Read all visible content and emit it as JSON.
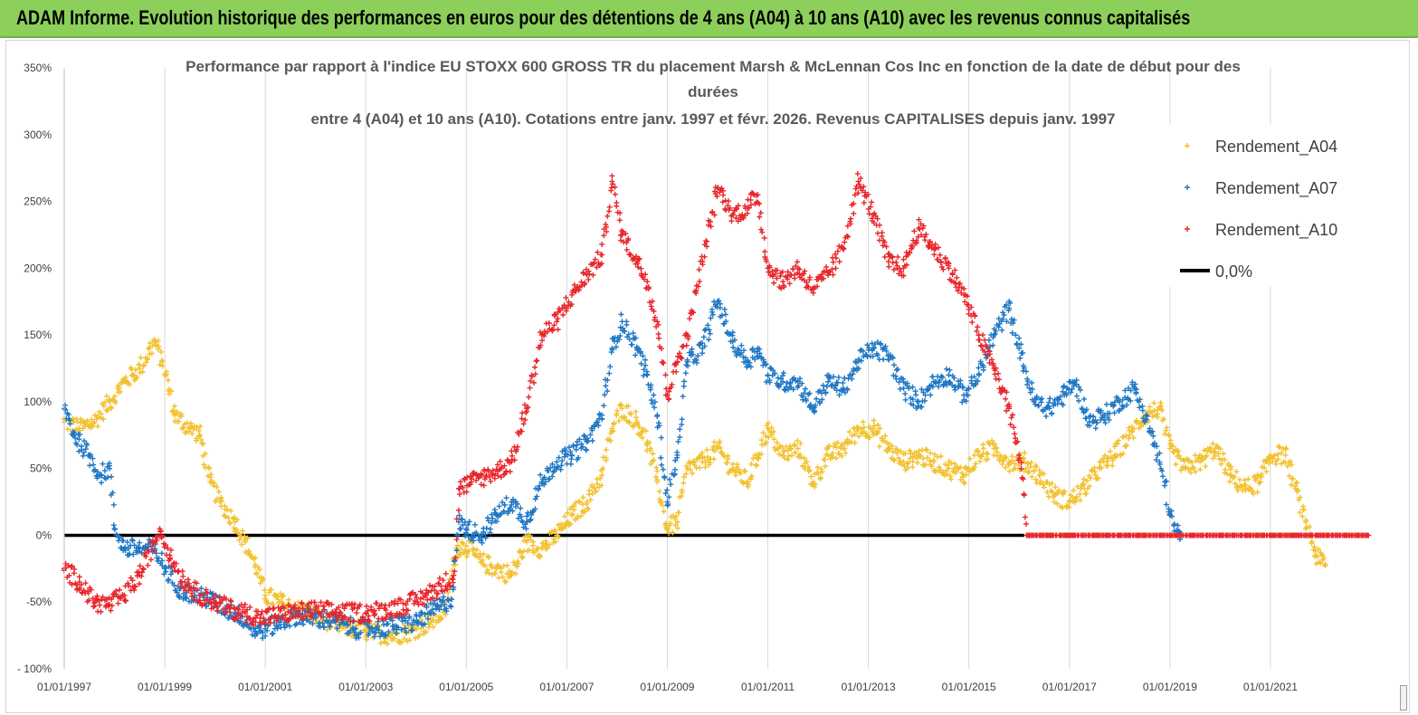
{
  "banner": {
    "title": "ADAM Informe. Evolution historique des performances en euros pour des détentions de 4 ans (A04) à 10 ans (A10) avec les revenus connus capitalisés",
    "color": "#8ccf5a"
  },
  "chart_data": {
    "type": "scatter",
    "title_lines": [
      "Performance par rapport à l'indice EU STOXX 600 GROSS TR  du placement Marsh & McLennan Cos Inc en fonction de la date de début pour des",
      "durées",
      "entre 4 (A04) et 10 ans (A10). Cotations entre janv. 1997 et févr. 2026. Revenus CAPITALISES depuis janv. 1997"
    ],
    "xlabel": "",
    "ylabel": "",
    "x_range": [
      1997.0,
      2023.0
    ],
    "ylim": [
      -100,
      350
    ],
    "y_ticks": [
      "- 100%",
      "-50%",
      "0%",
      "50%",
      "100%",
      "150%",
      "200%",
      "250%",
      "300%",
      "350%"
    ],
    "y_tick_values": [
      -100,
      -50,
      0,
      50,
      100,
      150,
      200,
      250,
      300,
      350
    ],
    "x_ticks": [
      "01/01/1997",
      "01/01/1999",
      "01/01/2001",
      "01/01/2003",
      "01/01/2005",
      "01/01/2007",
      "01/01/2009",
      "01/01/2011",
      "01/01/2013",
      "01/01/2015",
      "01/01/2017",
      "01/01/2019",
      "01/01/2021"
    ],
    "x_tick_values": [
      1997,
      1999,
      2001,
      2003,
      2005,
      2007,
      2009,
      2011,
      2013,
      2015,
      2017,
      2019,
      2021
    ],
    "grid": "vertical",
    "legend_position": "top-right",
    "series": [
      {
        "name": "Rendement_A04",
        "color": "#f2c12e",
        "marker": "+",
        "points": [
          [
            1997.0,
            85
          ],
          [
            1997.3,
            80
          ],
          [
            1997.6,
            85
          ],
          [
            1997.9,
            100
          ],
          [
            1998.2,
            115
          ],
          [
            1998.5,
            125
          ],
          [
            1998.8,
            145
          ],
          [
            1998.95,
            130
          ],
          [
            1999.2,
            90
          ],
          [
            1999.5,
            80
          ],
          [
            1999.7,
            75
          ],
          [
            1999.9,
            40
          ],
          [
            2000.1,
            25
          ],
          [
            2000.4,
            10
          ],
          [
            2000.6,
            -5
          ],
          [
            2000.8,
            -22
          ],
          [
            2001.0,
            -45
          ],
          [
            2001.3,
            -50
          ],
          [
            2001.6,
            -55
          ],
          [
            2002.0,
            -60
          ],
          [
            2002.5,
            -68
          ],
          [
            2003.0,
            -72
          ],
          [
            2003.5,
            -75
          ],
          [
            2003.9,
            -72
          ],
          [
            2004.3,
            -65
          ],
          [
            2004.6,
            -55
          ],
          [
            2004.8,
            -10
          ],
          [
            2005.0,
            -8
          ],
          [
            2005.3,
            -20
          ],
          [
            2005.6,
            -25
          ],
          [
            2005.9,
            -30
          ],
          [
            2006.2,
            -5
          ],
          [
            2006.5,
            -10
          ],
          [
            2006.8,
            0
          ],
          [
            2007.1,
            15
          ],
          [
            2007.4,
            25
          ],
          [
            2007.7,
            45
          ],
          [
            2007.9,
            80
          ],
          [
            2008.1,
            95
          ],
          [
            2008.4,
            85
          ],
          [
            2008.6,
            70
          ],
          [
            2008.8,
            40
          ],
          [
            2009.0,
            5
          ],
          [
            2009.2,
            10
          ],
          [
            2009.4,
            50
          ],
          [
            2009.7,
            55
          ],
          [
            2010.0,
            65
          ],
          [
            2010.3,
            50
          ],
          [
            2010.6,
            40
          ],
          [
            2010.8,
            60
          ],
          [
            2011.0,
            80
          ],
          [
            2011.3,
            60
          ],
          [
            2011.6,
            65
          ],
          [
            2011.9,
            40
          ],
          [
            2012.2,
            60
          ],
          [
            2012.5,
            65
          ],
          [
            2012.8,
            80
          ],
          [
            2013.1,
            80
          ],
          [
            2013.4,
            65
          ],
          [
            2013.7,
            55
          ],
          [
            2014.0,
            60
          ],
          [
            2014.3,
            55
          ],
          [
            2014.6,
            50
          ],
          [
            2014.9,
            45
          ],
          [
            2015.2,
            60
          ],
          [
            2015.5,
            65
          ],
          [
            2015.8,
            55
          ],
          [
            2016.1,
            55
          ],
          [
            2016.4,
            45
          ],
          [
            2016.7,
            30
          ],
          [
            2017.0,
            25
          ],
          [
            2017.3,
            35
          ],
          [
            2017.6,
            50
          ],
          [
            2017.9,
            60
          ],
          [
            2018.2,
            75
          ],
          [
            2018.5,
            90
          ],
          [
            2018.8,
            95
          ],
          [
            2019.0,
            65
          ],
          [
            2019.3,
            50
          ],
          [
            2019.6,
            55
          ],
          [
            2019.9,
            65
          ],
          [
            2020.2,
            45
          ],
          [
            2020.5,
            35
          ],
          [
            2020.8,
            40
          ],
          [
            2021.0,
            60
          ],
          [
            2021.3,
            60
          ],
          [
            2021.5,
            35
          ],
          [
            2021.7,
            10
          ],
          [
            2021.9,
            -15
          ],
          [
            2022.1,
            -22
          ]
        ]
      },
      {
        "name": "Rendement_A07",
        "color": "#1f77c4",
        "marker": "+",
        "points": [
          [
            1997.0,
            95
          ],
          [
            1997.2,
            75
          ],
          [
            1997.5,
            60
          ],
          [
            1997.7,
            45
          ],
          [
            1997.9,
            50
          ],
          [
            1998.0,
            5
          ],
          [
            1998.2,
            -10
          ],
          [
            1998.5,
            -10
          ],
          [
            1998.8,
            -10
          ],
          [
            1999.0,
            -25
          ],
          [
            1999.3,
            -40
          ],
          [
            1999.6,
            -45
          ],
          [
            1999.9,
            -48
          ],
          [
            2000.2,
            -55
          ],
          [
            2000.5,
            -60
          ],
          [
            2000.8,
            -72
          ],
          [
            2001.0,
            -70
          ],
          [
            2001.3,
            -65
          ],
          [
            2001.6,
            -60
          ],
          [
            2002.0,
            -62
          ],
          [
            2002.4,
            -65
          ],
          [
            2002.8,
            -70
          ],
          [
            2003.2,
            -70
          ],
          [
            2003.6,
            -68
          ],
          [
            2004.0,
            -65
          ],
          [
            2004.4,
            -55
          ],
          [
            2004.7,
            -48
          ],
          [
            2004.85,
            10
          ],
          [
            2005.0,
            5
          ],
          [
            2005.3,
            0
          ],
          [
            2005.6,
            15
          ],
          [
            2005.9,
            25
          ],
          [
            2006.2,
            10
          ],
          [
            2006.5,
            40
          ],
          [
            2006.8,
            55
          ],
          [
            2007.1,
            60
          ],
          [
            2007.4,
            70
          ],
          [
            2007.7,
            90
          ],
          [
            2007.9,
            140
          ],
          [
            2008.1,
            160
          ],
          [
            2008.4,
            140
          ],
          [
            2008.6,
            120
          ],
          [
            2008.8,
            90
          ],
          [
            2009.0,
            25
          ],
          [
            2009.2,
            60
          ],
          [
            2009.4,
            130
          ],
          [
            2009.7,
            140
          ],
          [
            2010.0,
            175
          ],
          [
            2010.3,
            145
          ],
          [
            2010.6,
            130
          ],
          [
            2010.8,
            140
          ],
          [
            2011.0,
            120
          ],
          [
            2011.3,
            115
          ],
          [
            2011.6,
            115
          ],
          [
            2011.9,
            95
          ],
          [
            2012.2,
            115
          ],
          [
            2012.5,
            110
          ],
          [
            2012.8,
            130
          ],
          [
            2013.1,
            140
          ],
          [
            2013.4,
            135
          ],
          [
            2013.7,
            110
          ],
          [
            2014.0,
            100
          ],
          [
            2014.3,
            115
          ],
          [
            2014.6,
            120
          ],
          [
            2014.9,
            105
          ],
          [
            2015.2,
            120
          ],
          [
            2015.5,
            150
          ],
          [
            2015.8,
            170
          ],
          [
            2016.0,
            140
          ],
          [
            2016.3,
            100
          ],
          [
            2016.6,
            95
          ],
          [
            2016.9,
            105
          ],
          [
            2017.1,
            115
          ],
          [
            2017.4,
            85
          ],
          [
            2017.7,
            90
          ],
          [
            2018.0,
            100
          ],
          [
            2018.3,
            110
          ],
          [
            2018.6,
            80
          ],
          [
            2018.9,
            40
          ],
          [
            2019.0,
            15
          ],
          [
            2019.2,
            -3
          ]
        ]
      },
      {
        "name": "Rendement_A10",
        "color": "#e8262b",
        "marker": "+",
        "points": [
          [
            1997.0,
            -25
          ],
          [
            1997.3,
            -35
          ],
          [
            1997.6,
            -50
          ],
          [
            1997.9,
            -52
          ],
          [
            1998.2,
            -45
          ],
          [
            1998.5,
            -30
          ],
          [
            1998.8,
            -5
          ],
          [
            1998.9,
            5
          ],
          [
            1999.1,
            -15
          ],
          [
            1999.4,
            -35
          ],
          [
            1999.7,
            -45
          ],
          [
            2000.0,
            -50
          ],
          [
            2000.3,
            -55
          ],
          [
            2000.6,
            -58
          ],
          [
            2000.9,
            -62
          ],
          [
            2001.2,
            -60
          ],
          [
            2001.5,
            -58
          ],
          [
            2002.0,
            -56
          ],
          [
            2002.5,
            -58
          ],
          [
            2003.0,
            -58
          ],
          [
            2003.4,
            -56
          ],
          [
            2003.8,
            -52
          ],
          [
            2004.2,
            -45
          ],
          [
            2004.5,
            -38
          ],
          [
            2004.75,
            -30
          ],
          [
            2004.85,
            35
          ],
          [
            2005.1,
            40
          ],
          [
            2005.4,
            45
          ],
          [
            2005.7,
            50
          ],
          [
            2005.9,
            55
          ],
          [
            2006.2,
            95
          ],
          [
            2006.5,
            150
          ],
          [
            2006.8,
            160
          ],
          [
            2007.1,
            180
          ],
          [
            2007.4,
            195
          ],
          [
            2007.7,
            210
          ],
          [
            2007.9,
            265
          ],
          [
            2008.1,
            225
          ],
          [
            2008.4,
            205
          ],
          [
            2008.6,
            190
          ],
          [
            2008.8,
            160
          ],
          [
            2009.0,
            105
          ],
          [
            2009.2,
            130
          ],
          [
            2009.4,
            150
          ],
          [
            2009.7,
            205
          ],
          [
            2010.0,
            260
          ],
          [
            2010.3,
            240
          ],
          [
            2010.6,
            245
          ],
          [
            2010.8,
            255
          ],
          [
            2011.0,
            200
          ],
          [
            2011.3,
            190
          ],
          [
            2011.6,
            200
          ],
          [
            2011.9,
            185
          ],
          [
            2012.2,
            195
          ],
          [
            2012.5,
            215
          ],
          [
            2012.8,
            265
          ],
          [
            2013.1,
            240
          ],
          [
            2013.4,
            205
          ],
          [
            2013.7,
            200
          ],
          [
            2014.0,
            230
          ],
          [
            2014.3,
            215
          ],
          [
            2014.6,
            200
          ],
          [
            2014.9,
            180
          ],
          [
            2015.2,
            150
          ],
          [
            2015.5,
            125
          ],
          [
            2015.8,
            95
          ],
          [
            2016.0,
            60
          ],
          [
            2016.1,
            30
          ],
          [
            2016.15,
            0
          ],
          [
            2016.6,
            0
          ],
          [
            2017.0,
            0
          ],
          [
            2017.5,
            0
          ],
          [
            2018.0,
            0
          ],
          [
            2018.5,
            0
          ],
          [
            2019.0,
            0
          ],
          [
            2019.5,
            0
          ],
          [
            2020.0,
            0
          ],
          [
            2020.5,
            0
          ],
          [
            2021.0,
            0
          ],
          [
            2021.5,
            0
          ],
          [
            2022.0,
            0
          ],
          [
            2022.5,
            0
          ],
          [
            2022.95,
            0
          ]
        ]
      }
    ],
    "reference_line": {
      "name": "0,0%",
      "value": 0,
      "color": "#000000",
      "x_from": 1997.0,
      "x_to": 2016.1
    }
  }
}
